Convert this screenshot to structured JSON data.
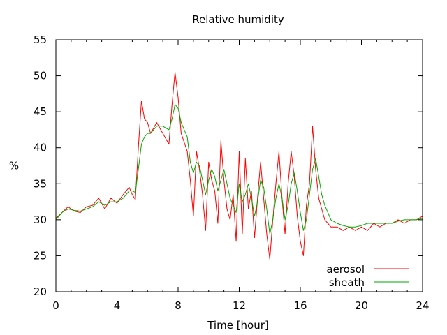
{
  "chart_data": {
    "type": "line",
    "title": "Relative humidity",
    "xlabel": "Time [hour]",
    "ylabel": "%",
    "xlim": [
      0,
      24
    ],
    "ylim": [
      20,
      55
    ],
    "xticks": [
      0,
      4,
      8,
      12,
      16,
      20,
      24
    ],
    "xtick_labels": [
      "0",
      "4",
      "8",
      "12",
      "16",
      "20",
      "24"
    ],
    "yticks": [
      20,
      25,
      30,
      35,
      40,
      45,
      50,
      55
    ],
    "ytick_labels": [
      "20",
      "25",
      "30",
      "35",
      "40",
      "45",
      "50",
      "55"
    ],
    "grid": false,
    "legend_position": "bottom-right",
    "series": [
      {
        "name": "aerosol",
        "color": "#ff0000",
        "x": [
          0,
          0.4,
          0.8,
          1.2,
          1.6,
          2.0,
          2.4,
          2.8,
          3.2,
          3.6,
          4.0,
          4.4,
          4.8,
          5.0,
          5.2,
          5.4,
          5.6,
          5.8,
          6.0,
          6.2,
          6.6,
          7.0,
          7.4,
          7.6,
          7.8,
          8.0,
          8.2,
          8.6,
          8.8,
          9.0,
          9.2,
          9.4,
          9.6,
          9.8,
          10.0,
          10.2,
          10.4,
          10.6,
          10.8,
          11.0,
          11.2,
          11.4,
          11.6,
          11.8,
          12.0,
          12.2,
          12.4,
          12.6,
          12.8,
          13.0,
          13.2,
          13.4,
          13.6,
          13.8,
          14.0,
          14.2,
          14.4,
          14.6,
          14.8,
          15.0,
          15.2,
          15.4,
          15.6,
          15.8,
          16.0,
          16.2,
          16.4,
          16.6,
          16.8,
          17.0,
          17.2,
          17.4,
          17.6,
          17.8,
          18.0,
          18.4,
          18.8,
          19.2,
          19.6,
          20.0,
          20.4,
          20.8,
          21.2,
          21.6,
          22.0,
          22.4,
          22.8,
          23.2,
          23.6,
          24.0
        ],
        "values": [
          30.2,
          31.0,
          31.8,
          31.2,
          31.0,
          31.8,
          32.0,
          33.0,
          31.5,
          33.0,
          32.3,
          33.5,
          34.5,
          33.5,
          32.8,
          40.0,
          46.5,
          44.0,
          43.5,
          42.0,
          43.5,
          42.0,
          40.5,
          46.0,
          50.5,
          47.0,
          42.0,
          39.5,
          35.5,
          30.5,
          39.5,
          37.0,
          33.5,
          28.5,
          38.0,
          35.5,
          34.0,
          29.5,
          41.0,
          35.5,
          31.5,
          30.0,
          33.5,
          27.0,
          39.5,
          28.0,
          38.5,
          31.5,
          34.0,
          27.5,
          33.0,
          38.0,
          33.0,
          28.0,
          24.5,
          30.0,
          35.0,
          39.5,
          33.0,
          28.0,
          35.0,
          39.5,
          36.0,
          30.5,
          27.0,
          25.0,
          32.0,
          35.0,
          43.0,
          37.0,
          33.0,
          31.5,
          30.0,
          29.5,
          29.0,
          29.0,
          28.5,
          29.0,
          28.5,
          29.0,
          28.5,
          29.5,
          29.0,
          29.5,
          29.5,
          30.0,
          29.5,
          30.0,
          30.0,
          30.5
        ]
      },
      {
        "name": "sheath",
        "color": "#00aa00",
        "x": [
          0,
          0.4,
          0.8,
          1.2,
          1.6,
          2.0,
          2.4,
          2.8,
          3.2,
          3.6,
          4.0,
          4.4,
          4.8,
          5.0,
          5.2,
          5.4,
          5.6,
          5.8,
          6.0,
          6.2,
          6.6,
          7.0,
          7.4,
          7.6,
          7.8,
          8.0,
          8.2,
          8.6,
          8.8,
          9.0,
          9.2,
          9.4,
          9.6,
          9.8,
          10.0,
          10.2,
          10.4,
          10.6,
          10.8,
          11.0,
          11.2,
          11.4,
          11.6,
          11.8,
          12.0,
          12.2,
          12.4,
          12.6,
          12.8,
          13.0,
          13.2,
          13.4,
          13.6,
          13.8,
          14.0,
          14.2,
          14.4,
          14.6,
          14.8,
          15.0,
          15.2,
          15.4,
          15.6,
          15.8,
          16.0,
          16.2,
          16.4,
          16.6,
          16.8,
          17.0,
          17.2,
          17.4,
          17.6,
          17.8,
          18.0,
          18.4,
          18.8,
          19.2,
          19.6,
          20.0,
          20.4,
          20.8,
          21.2,
          21.6,
          22.0,
          22.4,
          22.8,
          23.2,
          23.6,
          24.0
        ],
        "values": [
          30.0,
          31.0,
          31.5,
          31.3,
          31.2,
          31.5,
          31.8,
          32.5,
          32.0,
          32.5,
          32.5,
          33.0,
          34.0,
          34.0,
          33.8,
          37.0,
          40.5,
          41.5,
          42.0,
          42.0,
          43.0,
          43.0,
          42.5,
          44.0,
          46.0,
          45.5,
          43.5,
          41.5,
          38.0,
          36.5,
          38.0,
          37.5,
          35.5,
          33.5,
          35.5,
          37.0,
          36.0,
          34.0,
          35.5,
          37.0,
          35.0,
          33.0,
          32.0,
          31.0,
          35.0,
          32.5,
          33.5,
          35.0,
          33.0,
          30.5,
          32.5,
          35.5,
          34.5,
          31.5,
          28.0,
          30.0,
          33.0,
          35.0,
          33.0,
          30.0,
          32.0,
          35.0,
          36.5,
          34.0,
          31.0,
          28.5,
          30.0,
          33.5,
          37.0,
          38.5,
          36.0,
          33.5,
          32.0,
          31.0,
          30.0,
          29.5,
          29.2,
          29.0,
          29.0,
          29.2,
          29.5,
          29.5,
          29.5,
          29.5,
          29.5,
          29.8,
          30.0,
          30.0,
          30.0,
          30.2
        ]
      }
    ]
  }
}
